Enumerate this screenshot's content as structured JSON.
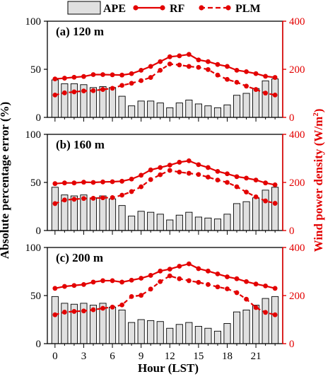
{
  "chart_data": {
    "type": "bar+line",
    "legend": {
      "placement": "top",
      "entries": [
        {
          "key": "ape",
          "label": "APE"
        },
        {
          "key": "rf",
          "label": "RF"
        },
        {
          "key": "plm",
          "label": "PLM"
        }
      ]
    },
    "xlabel": "Hour (LST)",
    "ylabel_left": "Absolute percentage error (%)",
    "ylabel_right": "Wind power density (W/m",
    "ylabel_right_sup": "2",
    "ylabel_right_close": ")",
    "x": [
      0,
      1,
      2,
      3,
      4,
      5,
      6,
      7,
      8,
      9,
      10,
      11,
      12,
      13,
      14,
      15,
      16,
      17,
      18,
      19,
      20,
      21,
      22,
      23
    ],
    "xticks": [
      0,
      3,
      6,
      9,
      12,
      15,
      18,
      21
    ],
    "xlim": [
      -0.8,
      23.8
    ],
    "ylim_left": [
      0,
      100
    ],
    "yticks_left": [
      0,
      50,
      100
    ],
    "ylim_right": [
      0,
      400
    ],
    "yticks_right": [
      0,
      200,
      400
    ],
    "colors": {
      "bar_fill": "#e0e0e0",
      "bar_stroke": "#000000",
      "rf": "#e30000",
      "plm": "#e30000",
      "right_axis": "#e30000"
    },
    "panels": [
      {
        "label": "(a)  120 m",
        "ape": [
          39,
          35,
          35,
          34,
          31,
          32,
          31,
          22,
          12,
          17,
          17,
          15,
          10,
          15,
          18,
          14,
          12,
          10,
          13,
          23,
          25,
          30,
          38,
          40
        ],
        "rf": [
          160,
          163,
          167,
          170,
          178,
          178,
          177,
          176,
          182,
          196,
          212,
          232,
          252,
          256,
          262,
          239,
          232,
          220,
          212,
          196,
          190,
          182,
          171,
          166
        ],
        "plm": [
          93,
          102,
          106,
          110,
          111,
          116,
          121,
          133,
          142,
          153,
          166,
          196,
          222,
          218,
          212,
          208,
          199,
          176,
          158,
          146,
          130,
          116,
          101,
          93
        ]
      },
      {
        "label": "(b)  160 m",
        "ape": [
          45,
          37,
          36,
          37,
          34,
          36,
          33,
          26,
          15,
          20,
          19,
          17,
          11,
          16,
          19,
          14,
          13,
          12,
          17,
          28,
          30,
          34,
          42,
          45
        ],
        "rf": [
          195,
          198,
          198,
          201,
          200,
          202,
          203,
          205,
          214,
          230,
          252,
          262,
          272,
          284,
          290,
          274,
          262,
          246,
          236,
          224,
          218,
          210,
          198,
          190
        ],
        "plm": [
          112,
          127,
          130,
          133,
          134,
          136,
          137,
          147,
          162,
          182,
          212,
          232,
          250,
          243,
          238,
          233,
          222,
          210,
          200,
          182,
          160,
          140,
          123,
          113
        ]
      },
      {
        "label": "(c)  200 m",
        "ape": [
          49,
          42,
          41,
          42,
          40,
          42,
          38,
          35,
          22,
          25,
          24,
          23,
          16,
          20,
          22,
          18,
          16,
          13,
          21,
          33,
          35,
          40,
          47,
          49
        ],
        "rf": [
          230,
          238,
          242,
          246,
          256,
          262,
          262,
          256,
          264,
          272,
          284,
          302,
          310,
          322,
          332,
          312,
          302,
          290,
          278,
          270,
          258,
          248,
          240,
          230
        ],
        "plm": [
          120,
          131,
          134,
          136,
          141,
          147,
          152,
          161,
          196,
          201,
          227,
          258,
          282,
          270,
          262,
          255,
          246,
          236,
          228,
          212,
          185,
          150,
          130,
          120
        ]
      }
    ]
  }
}
